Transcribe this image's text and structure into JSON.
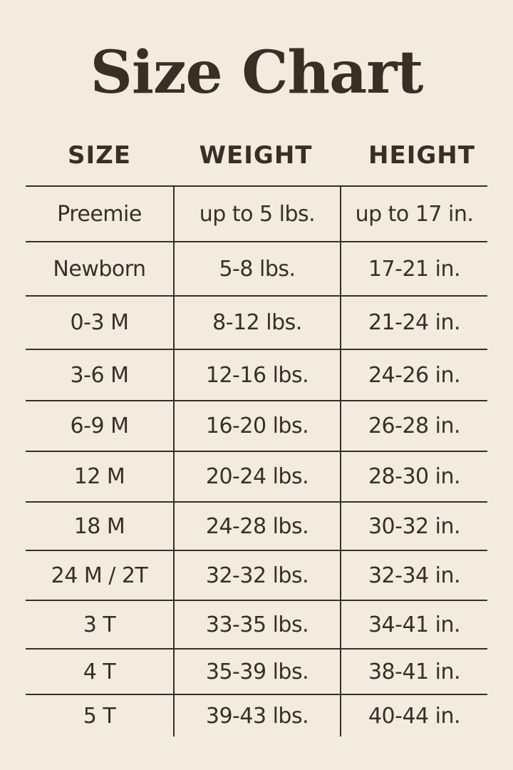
{
  "title": "Size Chart",
  "headers": [
    "SIZE",
    "WEIGHT",
    "HEIGHT"
  ],
  "rows": [
    [
      "Preemie",
      "up to 5 lbs.",
      "up to 17 in."
    ],
    [
      "Newborn",
      "5-8 lbs.",
      "17-21 in."
    ],
    [
      "0-3 M",
      "8-12 lbs.",
      "21-24 in."
    ],
    [
      "3-6 M",
      "12-16 lbs.",
      "24-26 in."
    ],
    [
      "6-9 M",
      "16-20 lbs.",
      "26-28 in."
    ],
    [
      "12 M",
      "20-24 lbs.",
      "28-30 in."
    ],
    [
      "18 M",
      "24-28 lbs.",
      "30-32 in."
    ],
    [
      "24 M / 2T",
      "32-32 lbs.",
      "32-34 in."
    ],
    [
      "3 T",
      "33-35 lbs.",
      "34-41 in."
    ],
    [
      "4 T",
      "35-39 lbs.",
      "38-41 in."
    ],
    [
      "5 T",
      "39-43 lbs.",
      "40-44 in."
    ]
  ],
  "colors": {
    "background": "#f3ebe0",
    "text": "#3a2e25"
  }
}
